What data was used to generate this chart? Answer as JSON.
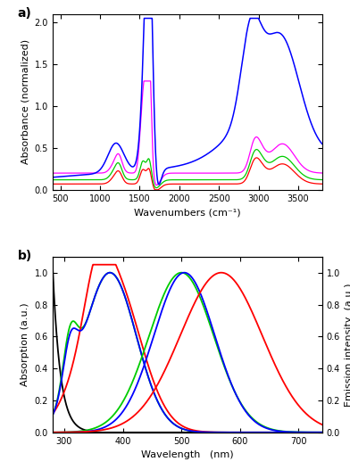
{
  "panel_a": {
    "xlim": [
      400,
      3800
    ],
    "ylim": [
      0,
      2.1
    ],
    "xlabel": "Wavenumbers (cm⁻¹)",
    "ylabel": "Absorbance (normalized)",
    "xticks": [
      500,
      1000,
      1500,
      2000,
      2500,
      3000,
      3500
    ],
    "yticks": [
      0.0,
      0.5,
      1.0,
      1.5,
      2.0
    ],
    "colors": {
      "red": "#FF0000",
      "green": "#00CC00",
      "magenta": "#FF00FF",
      "blue": "#0000FF"
    }
  },
  "panel_b": {
    "xlim": [
      280,
      740
    ],
    "ylim": [
      0,
      1.1
    ],
    "xlabel": "Wavelength   (nm)",
    "ylabel_left": "Absorption (a.u.)",
    "ylabel_right": "Emission intensity  (a.u.)",
    "xticks": [
      300,
      400,
      500,
      600,
      700
    ],
    "yticks": [
      0.0,
      0.2,
      0.4,
      0.6,
      0.8,
      1.0
    ],
    "colors": {
      "green": "#00CC00",
      "red": "#FF0000",
      "blue": "#0000FF",
      "black": "#000000"
    }
  }
}
